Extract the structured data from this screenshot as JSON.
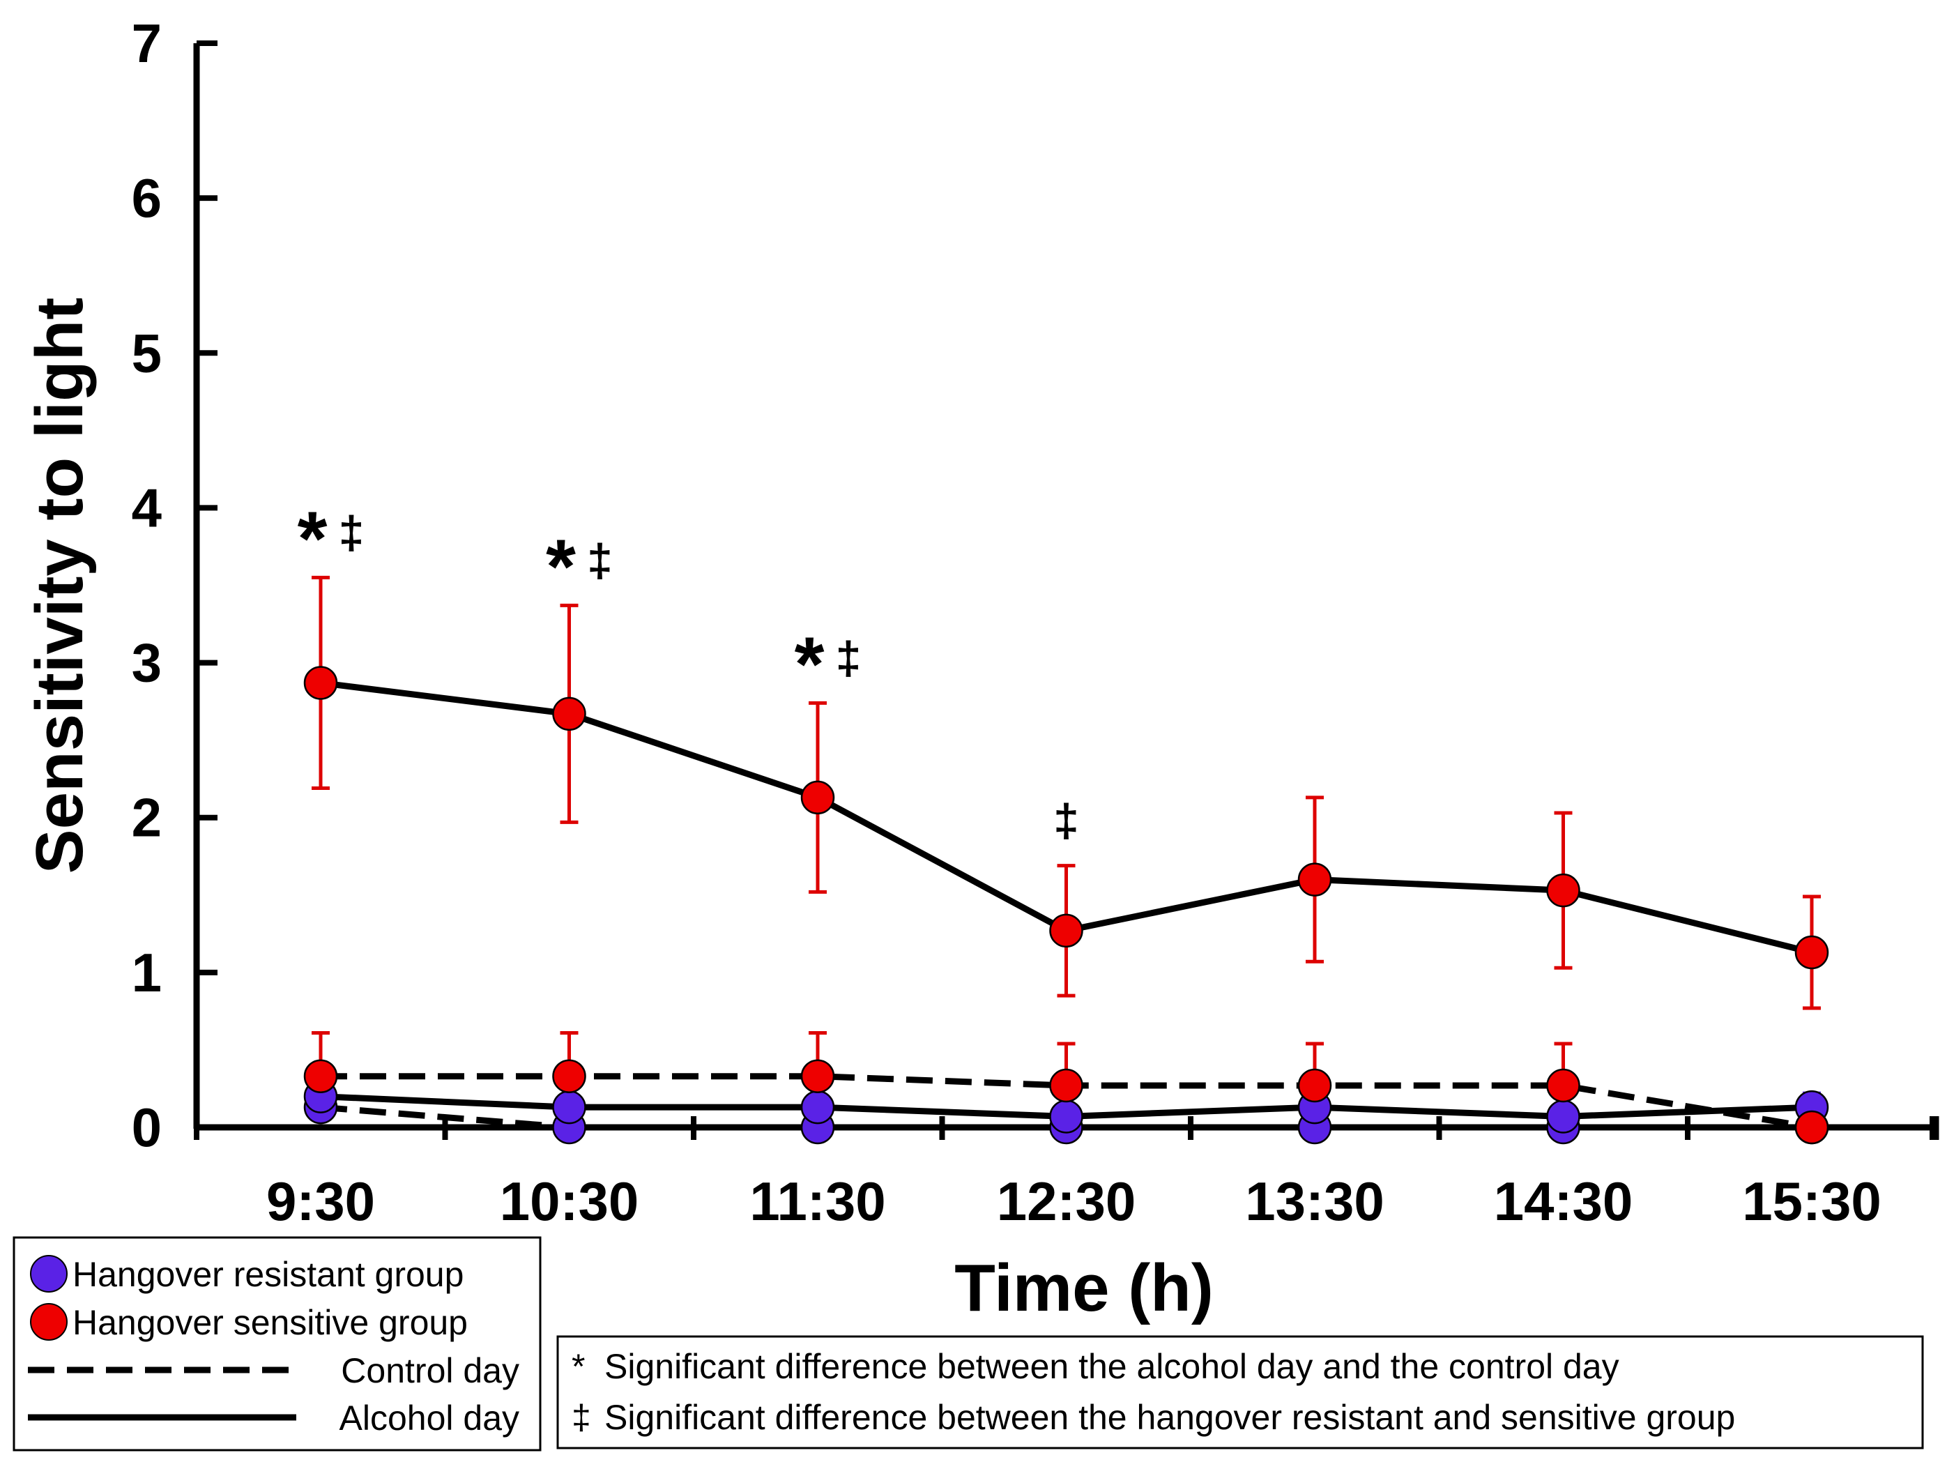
{
  "chart_data": {
    "type": "line",
    "title": "",
    "xlabel": "Time (h)",
    "ylabel": "Sensitivity to light",
    "ylim": [
      0,
      7
    ],
    "yticks": [
      "0",
      "1",
      "2",
      "3",
      "4",
      "5",
      "6",
      "7"
    ],
    "categories": [
      "9:30",
      "10:30",
      "11:30",
      "12:30",
      "13:30",
      "14:30",
      "15:30"
    ],
    "series": [
      {
        "name": "Hangover resistant group - Control day",
        "group": "resistant",
        "day": "control",
        "values": [
          0.13,
          0.0,
          0.0,
          0.0,
          0.0,
          0.0,
          0.0
        ],
        "err": [
          0,
          0,
          0,
          0,
          0,
          0,
          0
        ]
      },
      {
        "name": "Hangover resistant group - Alcohol day",
        "group": "resistant",
        "day": "alcohol",
        "values": [
          0.2,
          0.13,
          0.13,
          0.07,
          0.13,
          0.07,
          0.13
        ],
        "err": [
          0.09,
          0,
          0,
          0,
          0,
          0,
          0.09
        ]
      },
      {
        "name": "Hangover sensitive group - Control day",
        "group": "sensitive",
        "day": "control",
        "values": [
          0.33,
          0.33,
          0.33,
          0.27,
          0.27,
          0.27,
          0.0
        ],
        "err": [
          0.28,
          0.28,
          0.28,
          0.27,
          0.27,
          0.27,
          0
        ]
      },
      {
        "name": "Hangover sensitive group - Alcohol day",
        "group": "sensitive",
        "day": "alcohol",
        "values": [
          2.87,
          2.67,
          2.13,
          1.27,
          1.6,
          1.53,
          1.13
        ],
        "err": [
          0.68,
          0.7,
          0.61,
          0.42,
          0.53,
          0.5,
          0.36
        ]
      }
    ],
    "annotations": [
      {
        "category": "9:30",
        "star": "*",
        "dagger": "‡"
      },
      {
        "category": "10:30",
        "star": "*",
        "dagger": "‡"
      },
      {
        "category": "11:30",
        "star": "*",
        "dagger": "‡"
      },
      {
        "category": "12:30",
        "star": "",
        "dagger": "‡"
      }
    ],
    "colors": {
      "resistant": "#5a22e6",
      "sensitive": "#ee0000",
      "errorbar": "#dd0000",
      "line": "#000000"
    }
  },
  "legend": {
    "resistant": "Hangover resistant group",
    "sensitive": "Hangover sensitive group",
    "control": "Control day",
    "alcohol": "Alcohol day"
  },
  "significance_legend": {
    "star_symbol": "*",
    "star_text": "Significant difference between the alcohol day and the control day",
    "dagger_symbol": "‡",
    "dagger_text": "Significant difference between the hangover resistant and sensitive group"
  }
}
